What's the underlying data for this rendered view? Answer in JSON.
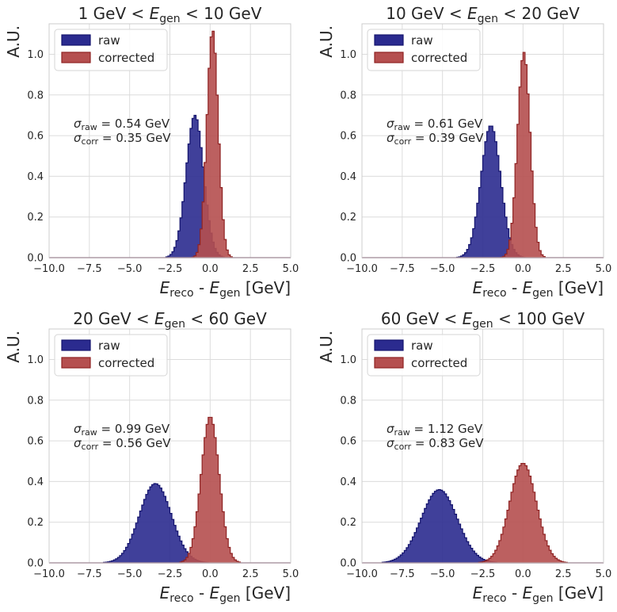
{
  "chart_data": [
    {
      "type": "histogram",
      "title_prefix": "1 GeV < ",
      "title_var": "E",
      "title_sub": "gen",
      "title_suffix": " < 10 GeV",
      "ylabel": "A.U.",
      "xlabel": {
        "var1": "E",
        "sub1": "reco",
        "mid": " - ",
        "var2": "E",
        "sub2": "gen",
        "unit": " [GeV]"
      },
      "xlim": [
        -10,
        5
      ],
      "ylim": [
        0,
        1.15
      ],
      "xticks": [
        -10,
        -7.5,
        -5,
        -2.5,
        0,
        2.5,
        5
      ],
      "xtick_labels": [
        "−10.0",
        "−7.5",
        "−5.0",
        "−2.5",
        "0.0",
        "2.5",
        "5.0"
      ],
      "yticks": [
        0,
        0.2,
        0.4,
        0.6,
        0.8,
        1.0
      ],
      "ytick_labels": [
        "0.0",
        "0.2",
        "0.4",
        "0.6",
        "0.8",
        "1.0"
      ],
      "grid": true,
      "legend": {
        "location": "upper-left",
        "entries": [
          "raw",
          "corrected"
        ]
      },
      "annotation": {
        "raw": {
          "sym": "σ",
          "sub": "raw",
          "value": " = 0.54 GeV"
        },
        "corr": {
          "sym": "σ",
          "sub": "corr",
          "value": " = 0.35 GeV"
        }
      },
      "bin_width": 0.125,
      "series": [
        {
          "name": "raw",
          "color": "#2b2b8f",
          "edge": "#14146e",
          "mean": -0.95,
          "sigma": 0.54,
          "peak": 0.7
        },
        {
          "name": "corrected",
          "color": "#b54f4f",
          "edge": "#8f2323",
          "mean": 0.15,
          "sigma": 0.35,
          "peak": 1.12
        }
      ]
    },
    {
      "type": "histogram",
      "title_prefix": "10 GeV < ",
      "title_var": "E",
      "title_sub": "gen",
      "title_suffix": " < 20 GeV",
      "ylabel": "A.U.",
      "xlabel": {
        "var1": "E",
        "sub1": "reco",
        "mid": " - ",
        "var2": "E",
        "sub2": "gen",
        "unit": " [GeV]"
      },
      "xlim": [
        -10,
        5
      ],
      "ylim": [
        0,
        1.15
      ],
      "xticks": [
        -10,
        -7.5,
        -5,
        -2.5,
        0,
        2.5,
        5
      ],
      "xtick_labels": [
        "−10.0",
        "−7.5",
        "−5.0",
        "−2.5",
        "0.0",
        "2.5",
        "5.0"
      ],
      "yticks": [
        0,
        0.2,
        0.4,
        0.6,
        0.8,
        1.0
      ],
      "ytick_labels": [
        "0.0",
        "0.2",
        "0.4",
        "0.6",
        "0.8",
        "1.0"
      ],
      "grid": true,
      "legend": {
        "location": "upper-left",
        "entries": [
          "raw",
          "corrected"
        ]
      },
      "annotation": {
        "raw": {
          "sym": "σ",
          "sub": "raw",
          "value": " = 0.61 GeV"
        },
        "corr": {
          "sym": "σ",
          "sub": "corr",
          "value": " = 0.39 GeV"
        }
      },
      "bin_width": 0.125,
      "series": [
        {
          "name": "raw",
          "color": "#2b2b8f",
          "edge": "#14146e",
          "mean": -2.0,
          "sigma": 0.61,
          "peak": 0.65
        },
        {
          "name": "corrected",
          "color": "#b54f4f",
          "edge": "#8f2323",
          "mean": 0.05,
          "sigma": 0.39,
          "peak": 1.01
        }
      ]
    },
    {
      "type": "histogram",
      "title_prefix": "20 GeV < ",
      "title_var": "E",
      "title_sub": "gen",
      "title_suffix": " < 60 GeV",
      "ylabel": "A.U.",
      "xlabel": {
        "var1": "E",
        "sub1": "reco",
        "mid": " - ",
        "var2": "E",
        "sub2": "gen",
        "unit": " [GeV]"
      },
      "xlim": [
        -10,
        5
      ],
      "ylim": [
        0,
        1.15
      ],
      "xticks": [
        -10,
        -7.5,
        -5,
        -2.5,
        0,
        2.5,
        5
      ],
      "xtick_labels": [
        "−10.0",
        "−7.5",
        "−5.0",
        "−2.5",
        "0.0",
        "2.5",
        "5.0"
      ],
      "yticks": [
        0,
        0.2,
        0.4,
        0.6,
        0.8,
        1.0
      ],
      "ytick_labels": [
        "0.0",
        "0.2",
        "0.4",
        "0.6",
        "0.8",
        "1.0"
      ],
      "grid": true,
      "legend": {
        "location": "upper-left",
        "entries": [
          "raw",
          "corrected"
        ]
      },
      "annotation": {
        "raw": {
          "sym": "σ",
          "sub": "raw",
          "value": " = 0.99 GeV"
        },
        "corr": {
          "sym": "σ",
          "sub": "corr",
          "value": " = 0.56 GeV"
        }
      },
      "bin_width": 0.125,
      "series": [
        {
          "name": "raw",
          "color": "#2b2b8f",
          "edge": "#14146e",
          "mean": -3.4,
          "sigma": 0.99,
          "peak": 0.39
        },
        {
          "name": "corrected",
          "color": "#b54f4f",
          "edge": "#8f2323",
          "mean": 0.0,
          "sigma": 0.56,
          "peak": 0.72
        }
      ]
    },
    {
      "type": "histogram",
      "title_prefix": "60 GeV < ",
      "title_var": "E",
      "title_sub": "gen",
      "title_suffix": " < 100 GeV",
      "ylabel": "A.U.",
      "xlabel": {
        "var1": "E",
        "sub1": "reco",
        "mid": " - ",
        "var2": "E",
        "sub2": "gen",
        "unit": " [GeV]"
      },
      "xlim": [
        -10,
        5
      ],
      "ylim": [
        0,
        1.15
      ],
      "xticks": [
        -10,
        -7.5,
        -5,
        -2.5,
        0,
        2.5,
        5
      ],
      "xtick_labels": [
        "−10.0",
        "−7.5",
        "−5.0",
        "−2.5",
        "0.0",
        "2.5",
        "5.0"
      ],
      "yticks": [
        0,
        0.2,
        0.4,
        0.6,
        0.8,
        1.0
      ],
      "ytick_labels": [
        "0.0",
        "0.2",
        "0.4",
        "0.6",
        "0.8",
        "1.0"
      ],
      "grid": true,
      "legend": {
        "location": "upper-left",
        "entries": [
          "raw",
          "corrected"
        ]
      },
      "annotation": {
        "raw": {
          "sym": "σ",
          "sub": "raw",
          "value": " = 1.12 GeV"
        },
        "corr": {
          "sym": "σ",
          "sub": "corr",
          "value": " = 0.83 GeV"
        }
      },
      "bin_width": 0.125,
      "series": [
        {
          "name": "raw",
          "color": "#2b2b8f",
          "edge": "#14146e",
          "mean": -5.2,
          "sigma": 1.12,
          "peak": 0.36
        },
        {
          "name": "corrected",
          "color": "#b54f4f",
          "edge": "#8f2323",
          "mean": 0.0,
          "sigma": 0.83,
          "peak": 0.49
        }
      ]
    }
  ]
}
